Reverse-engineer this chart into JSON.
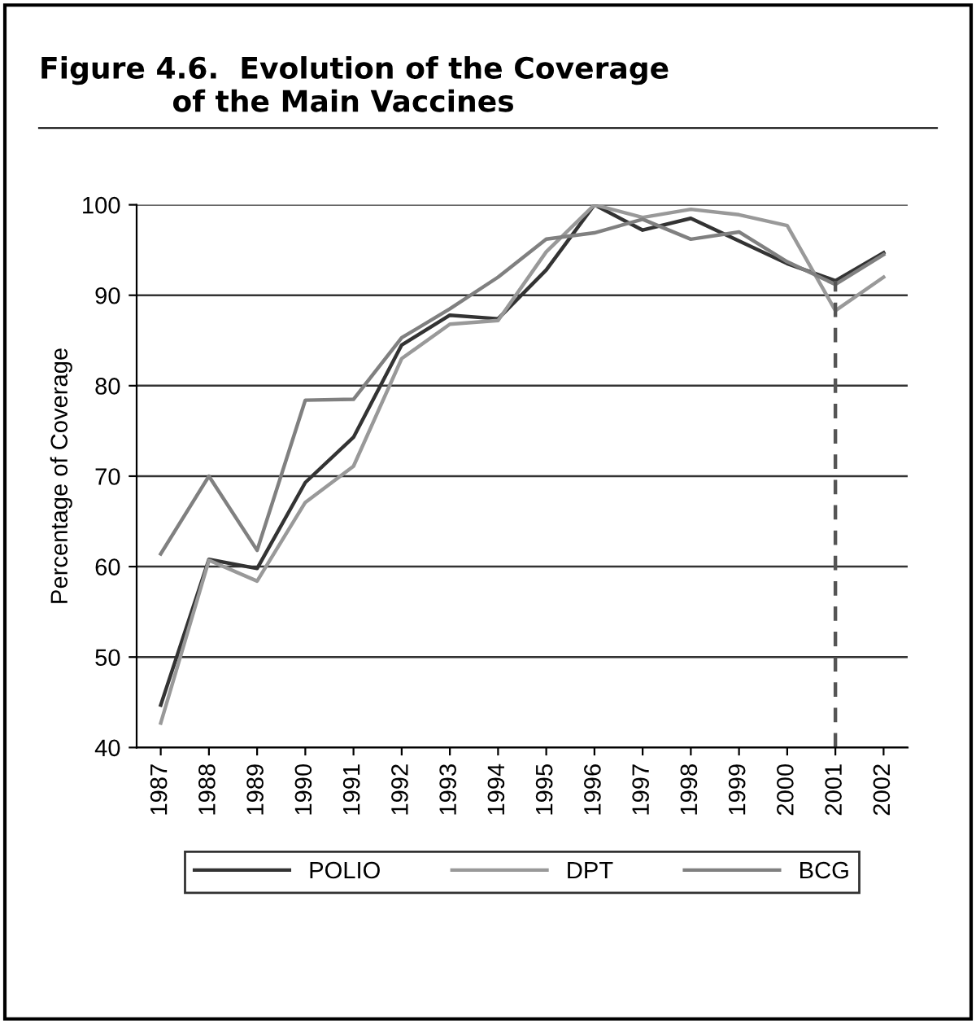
{
  "chart_data": {
    "type": "line",
    "title": "Figure 4.6.  Evolution of the Coverage\n             of the Main Vaccines",
    "ylabel": "Percentage of Coverage",
    "categories": [
      "1987",
      "1988",
      "1989",
      "1990",
      "1991",
      "1992",
      "1993",
      "1994",
      "1995",
      "1996",
      "1997",
      "1998",
      "1999",
      "2000",
      "2001",
      "2002"
    ],
    "series": [
      {
        "name": "POLIO",
        "color": "#333333",
        "values": [
          44.7,
          60.8,
          59.8,
          69.3,
          74.3,
          84.5,
          87.8,
          87.4,
          92.8,
          100,
          97.2,
          98.5,
          96,
          93.5,
          91.6,
          94.7
        ]
      },
      {
        "name": "DPT",
        "color": "#999999",
        "values": [
          42.7,
          60.7,
          58.4,
          67.1,
          71.1,
          83,
          86.8,
          87.2,
          94.8,
          100,
          98.6,
          99.5,
          98.9,
          97.7,
          88.3,
          92
        ]
      },
      {
        "name": "BCG",
        "color": "#808080",
        "values": [
          61.4,
          70,
          61.8,
          78.4,
          78.5,
          85.3,
          88.5,
          92,
          96.2,
          96.9,
          98.4,
          96.2,
          97,
          93.7,
          91.2,
          94.5
        ]
      }
    ],
    "ref_lines": [
      {
        "axis": "x",
        "value": "2001",
        "color": "#555555",
        "line_style": "dashed"
      }
    ],
    "ylim": [
      40,
      100
    ],
    "yticks": [
      40,
      50,
      60,
      70,
      80,
      90,
      100
    ],
    "grid": "y",
    "legend": "bottom",
    "marker": "none",
    "line_style": "solid"
  }
}
